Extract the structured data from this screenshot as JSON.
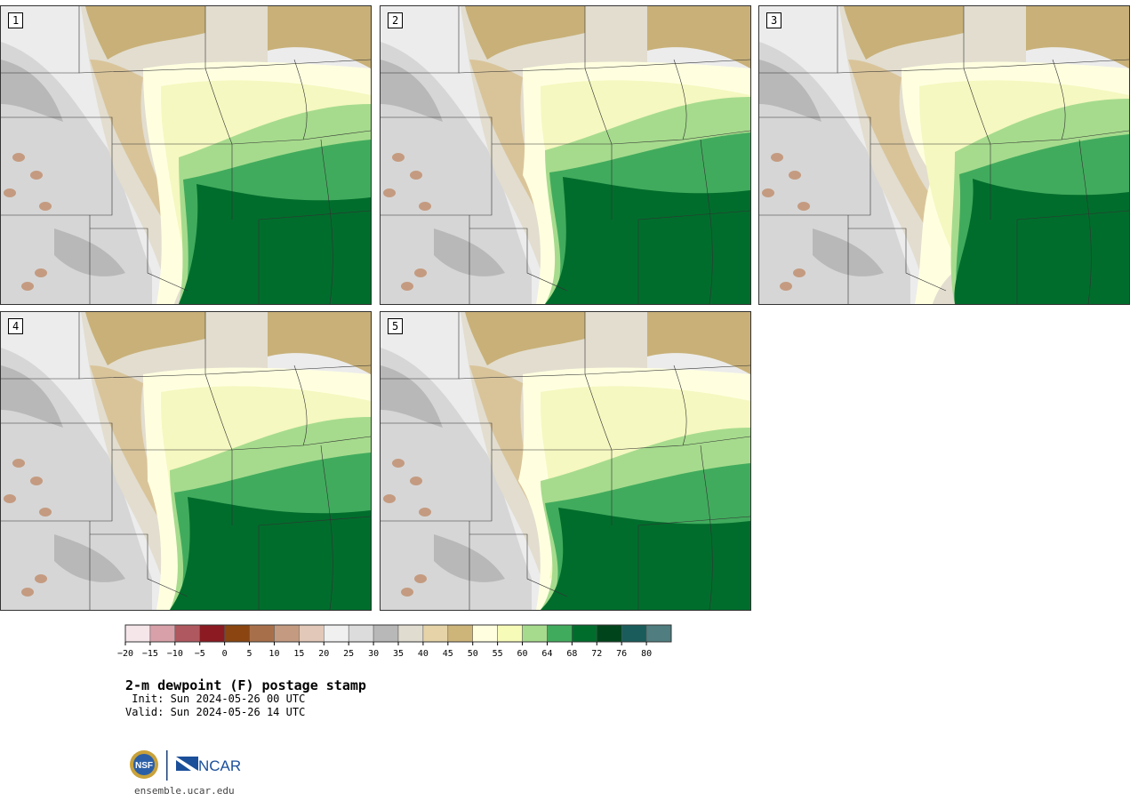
{
  "figure": {
    "title": "2-m dewpoint (F) postage stamp",
    "init": " Init: Sun 2024-05-26 00 UTC",
    "valid": "Valid: Sun 2024-05-26 14 UTC",
    "website": "ensemble.ucar.edu",
    "logo_text": "NCAR",
    "logo_badge": "NSF"
  },
  "panels": [
    {
      "label": "1"
    },
    {
      "label": "2"
    },
    {
      "label": "3"
    },
    {
      "label": "4"
    },
    {
      "label": "5"
    }
  ],
  "colorbar": {
    "ticks": [
      "−20",
      "−15",
      "−10",
      "−5",
      "0",
      "5",
      "10",
      "15",
      "20",
      "25",
      "30",
      "35",
      "40",
      "45",
      "50",
      "55",
      "60",
      "64",
      "68",
      "72",
      "76",
      "80"
    ],
    "colors": [
      "#f5e6ea",
      "#d8a1aa",
      "#b0585f",
      "#8b1a22",
      "#8a4510",
      "#a8704a",
      "#c49b80",
      "#e2c8b8",
      "#f0f0f0",
      "#dcdcdc",
      "#b8b8b8",
      "#e0ddd0",
      "#e6d4a8",
      "#cdb57a",
      "#ffffe0",
      "#f7fbb8",
      "#a6db8d",
      "#41ab5d",
      "#006d2c",
      "#00441b",
      "#1a5c5c",
      "#4f7d80"
    ]
  },
  "map_colors": {
    "grey_light": "#ececec",
    "grey_mid": "#d6d6d6",
    "grey_dark": "#b8b8b8",
    "tan_light": "#e2ddcf",
    "tan": "#d9c49a",
    "tan_dark": "#c8b078",
    "yellow_pale": "#ffffe0",
    "yellow": "#f5f8c0",
    "green_light": "#a6db8d",
    "green": "#41ab5d",
    "green_dark": "#006d2c",
    "brown": "#c49b80"
  }
}
